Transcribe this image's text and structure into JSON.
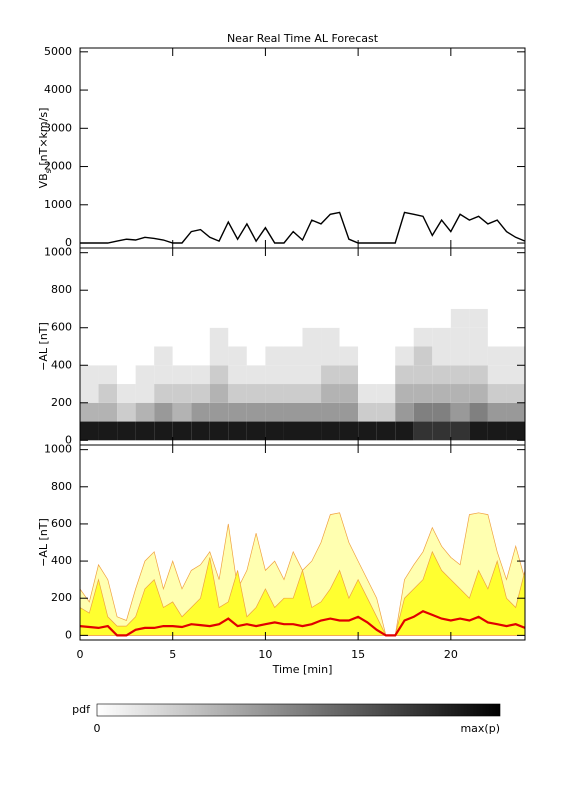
{
  "chart_data": [
    {
      "type": "line",
      "title": "Near Real Time AL Forecast",
      "ylabel": [
        "VB",
        "s",
        " [nT×km/s]"
      ],
      "x": [
        0,
        0.5,
        1,
        1.5,
        2,
        2.5,
        3,
        3.5,
        4,
        4.5,
        5,
        5.5,
        6,
        6.5,
        7,
        7.5,
        8,
        8.5,
        9,
        9.5,
        10,
        10.5,
        11,
        11.5,
        12,
        12.5,
        13,
        13.5,
        14,
        14.5,
        15,
        15.5,
        16,
        16.5,
        17,
        17.5,
        18,
        18.5,
        19,
        19.5,
        20,
        20.5,
        21,
        21.5,
        22,
        22.5,
        23,
        23.5,
        24
      ],
      "values": [
        0,
        0,
        0,
        0,
        50,
        100,
        80,
        150,
        120,
        80,
        0,
        0,
        300,
        350,
        150,
        50,
        550,
        100,
        500,
        50,
        400,
        0,
        0,
        300,
        80,
        600,
        500,
        750,
        800,
        100,
        0,
        0,
        0,
        0,
        0,
        800,
        750,
        700,
        200,
        600,
        300,
        750,
        600,
        700,
        500,
        600,
        300,
        150,
        50
      ],
      "color": "#000000",
      "xlim": [
        0,
        24
      ],
      "xticks": [
        0,
        5,
        10,
        15,
        20
      ],
      "ylim": [
        -130,
        5100
      ],
      "yticks": [
        0,
        1000,
        2000,
        3000,
        4000,
        5000
      ]
    },
    {
      "type": "heatmap",
      "ylabel": [
        "−AL [nT]"
      ],
      "x_bins": [
        0,
        1,
        2,
        3,
        4,
        5,
        6,
        7,
        8,
        9,
        10,
        11,
        12,
        13,
        14,
        15,
        16,
        17,
        18,
        19,
        20,
        21,
        22,
        23,
        24
      ],
      "y_bins": [
        0,
        100,
        200,
        300,
        400,
        500,
        600,
        700
      ],
      "z": [
        [
          0.9,
          0.9,
          0.9,
          0.9,
          0.9,
          0.9,
          0.9,
          0.9,
          0.9,
          0.9,
          0.9,
          0.9,
          0.9,
          0.9,
          0.9,
          0.9,
          0.9,
          0.9,
          0.8,
          0.8,
          0.8,
          0.9,
          0.9,
          0.9
        ],
        [
          0.3,
          0.3,
          0.2,
          0.3,
          0.4,
          0.3,
          0.4,
          0.4,
          0.4,
          0.4,
          0.4,
          0.4,
          0.4,
          0.4,
          0.4,
          0.2,
          0.2,
          0.4,
          0.5,
          0.5,
          0.4,
          0.5,
          0.4,
          0.4
        ],
        [
          0.1,
          0.2,
          0.1,
          0.1,
          0.2,
          0.2,
          0.2,
          0.3,
          0.2,
          0.2,
          0.2,
          0.2,
          0.2,
          0.3,
          0.3,
          0.1,
          0.1,
          0.3,
          0.3,
          0.3,
          0.3,
          0.3,
          0.2,
          0.2
        ],
        [
          0.1,
          0.1,
          0,
          0.1,
          0.1,
          0.1,
          0.1,
          0.2,
          0.1,
          0.1,
          0.1,
          0.1,
          0.1,
          0.2,
          0.2,
          0,
          0,
          0.2,
          0.2,
          0.2,
          0.2,
          0.2,
          0.1,
          0.1
        ],
        [
          0,
          0,
          0,
          0,
          0.1,
          0,
          0,
          0.1,
          0.1,
          0,
          0.1,
          0.1,
          0.1,
          0.1,
          0.1,
          0,
          0,
          0.1,
          0.2,
          0.1,
          0.1,
          0.1,
          0.1,
          0.1
        ],
        [
          0,
          0,
          0,
          0,
          0,
          0,
          0,
          0.1,
          0,
          0,
          0,
          0,
          0.1,
          0.1,
          0,
          0,
          0,
          0,
          0.1,
          0.1,
          0.1,
          0.1,
          0,
          0
        ],
        [
          0,
          0,
          0,
          0,
          0,
          0,
          0,
          0,
          0,
          0,
          0,
          0,
          0,
          0,
          0,
          0,
          0,
          0,
          0,
          0,
          0.1,
          0.1,
          0,
          0
        ]
      ],
      "xlim": [
        0,
        24
      ],
      "xticks": [
        0,
        5,
        10,
        15,
        20
      ],
      "ylim": [
        -25,
        1025
      ],
      "yticks": [
        0,
        200,
        400,
        600,
        800,
        1000
      ],
      "colorbar": {
        "label": "pdf",
        "min_label": "0",
        "max_label": "max(p)"
      }
    },
    {
      "type": "area",
      "ylabel": [
        "−AL [nT]"
      ],
      "xlabel": "Time [min]",
      "xtick_labels": true,
      "x": [
        0,
        0.5,
        1,
        1.5,
        2,
        2.5,
        3,
        3.5,
        4,
        4.5,
        5,
        5.5,
        6,
        6.5,
        7,
        7.5,
        8,
        8.5,
        9,
        9.5,
        10,
        10.5,
        11,
        11.5,
        12,
        12.5,
        13,
        13.5,
        14,
        14.5,
        15,
        15.5,
        16,
        16.5,
        17,
        17.5,
        18,
        18.5,
        19,
        19.5,
        20,
        20.5,
        21,
        21.5,
        22,
        22.5,
        23,
        23.5,
        24
      ],
      "series": [
        {
          "color": "#ffffb0",
          "stroke": "#f0a040",
          "fill": true,
          "values": [
            250,
            180,
            380,
            300,
            100,
            80,
            250,
            400,
            450,
            250,
            400,
            250,
            350,
            380,
            450,
            300,
            600,
            250,
            350,
            550,
            350,
            400,
            300,
            450,
            350,
            400,
            500,
            650,
            660,
            500,
            400,
            300,
            200,
            0,
            0,
            300,
            380,
            450,
            580,
            480,
            420,
            380,
            650,
            660,
            650,
            450,
            300,
            480,
            300
          ]
        },
        {
          "color": "#ffff30",
          "stroke": "#f0a040",
          "fill": true,
          "values": [
            150,
            120,
            300,
            100,
            50,
            50,
            100,
            250,
            300,
            150,
            180,
            100,
            150,
            200,
            420,
            150,
            180,
            350,
            100,
            150,
            250,
            150,
            200,
            200,
            350,
            150,
            180,
            250,
            350,
            200,
            300,
            200,
            100,
            0,
            0,
            200,
            250,
            300,
            450,
            350,
            300,
            250,
            200,
            350,
            250,
            400,
            200,
            150,
            350
          ]
        },
        {
          "color": "#e00000",
          "stroke": "#e00000",
          "fill": false,
          "values": [
            50,
            45,
            40,
            50,
            0,
            0,
            30,
            40,
            40,
            50,
            50,
            45,
            60,
            55,
            50,
            60,
            90,
            50,
            60,
            50,
            60,
            70,
            60,
            60,
            50,
            60,
            80,
            90,
            80,
            80,
            100,
            70,
            30,
            0,
            0,
            80,
            100,
            130,
            110,
            90,
            80,
            90,
            80,
            100,
            70,
            60,
            50,
            60,
            40
          ]
        }
      ],
      "xlim": [
        0,
        24
      ],
      "xticks": [
        0,
        5,
        10,
        15,
        20
      ],
      "ylim": [
        -25,
        1025
      ],
      "yticks": [
        0,
        200,
        400,
        600,
        800,
        1000
      ]
    }
  ]
}
